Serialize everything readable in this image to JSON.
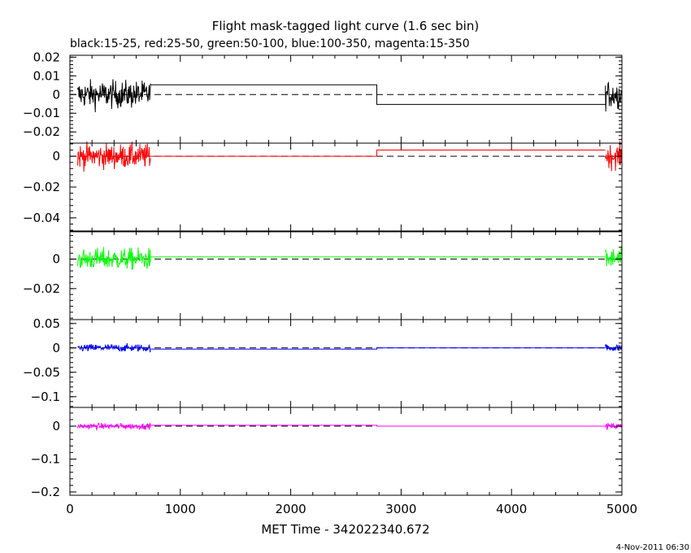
{
  "chart_data": {
    "type": "line",
    "title": "Flight mask-tagged light curve (1.6 sec bin)",
    "subtitle": "black:15-25, red:25-50, green:50-100, blue:100-350, magenta:15-350",
    "xlabel": "MET Time - 342022340.672",
    "timestamp": "4-Nov-2011 06:30",
    "xlim": [
      0,
      5000
    ],
    "xticks": [
      0,
      1000,
      2000,
      3000,
      4000,
      5000
    ],
    "xtick_labels": [
      "0",
      "1000",
      "2000",
      "3000",
      "4000",
      "5000"
    ],
    "panels": [
      {
        "name": "black:15-25",
        "color": "#000000",
        "ylim": [
          -0.026,
          0.021
        ],
        "yticks": [
          0.02,
          0.01,
          0,
          -0.01,
          -0.02
        ],
        "ytick_labels": [
          "0.02",
          "0.01",
          "0",
          "−0.01",
          "−0.02"
        ],
        "noise_amplitude": 0.0065,
        "steps": [
          [
            730,
            2780,
            0.0052
          ],
          [
            2780,
            4850,
            -0.0053
          ]
        ]
      },
      {
        "name": "red:25-50",
        "color": "#ff0000",
        "ylim": [
          -0.0485,
          0.0085
        ],
        "yticks": [
          0,
          -0.02,
          -0.04
        ],
        "ytick_labels": [
          "0",
          "−0.02",
          "−0.04"
        ],
        "noise_amplitude": 0.007,
        "steps": [
          [
            730,
            2780,
            0.0
          ],
          [
            2780,
            4850,
            0.004
          ]
        ]
      },
      {
        "name": "green:50-100",
        "color": "#00ff00",
        "ylim": [
          -0.041,
          0.0185
        ],
        "yticks": [
          0,
          -0.02
        ],
        "ytick_labels": [
          "0",
          "−0.02"
        ],
        "noise_amplitude": 0.0065,
        "steps": [
          [
            730,
            2780,
            0.0015
          ],
          [
            2780,
            4850,
            0.0015
          ]
        ]
      },
      {
        "name": "blue:100-350",
        "color": "#0000ff",
        "ylim": [
          -0.122,
          0.058
        ],
        "yticks": [
          0.05,
          0,
          -0.05,
          -0.1
        ],
        "ytick_labels": [
          "0.05",
          "0",
          "−0.05",
          "−0.1"
        ],
        "noise_amplitude": 0.007,
        "steps": [
          [
            730,
            2780,
            -0.0025
          ],
          [
            2780,
            4850,
            0.0
          ]
        ]
      },
      {
        "name": "magenta:15-350",
        "color": "#ff00ff",
        "ylim": [
          -0.21,
          0.057
        ],
        "yticks": [
          0,
          -0.1,
          -0.2
        ],
        "ytick_labels": [
          "0",
          "−0.1",
          "−0.2"
        ],
        "noise_amplitude": 0.008,
        "steps": [
          [
            730,
            2780,
            0.003
          ],
          [
            2780,
            4850,
            0.0
          ]
        ]
      }
    ],
    "segments": [
      [
        70,
        730
      ],
      [
        4850,
        5000
      ]
    ]
  }
}
